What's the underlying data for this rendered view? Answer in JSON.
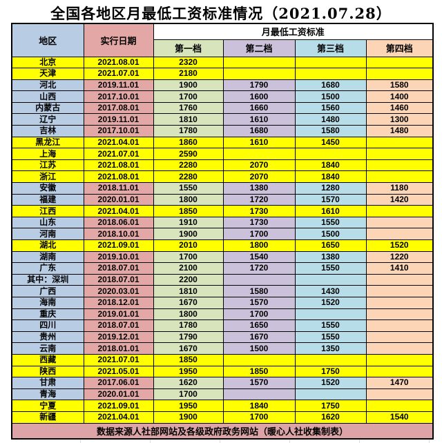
{
  "chart_data": {
    "type": "table",
    "title": "全国各地区月最低工资标准情况（2021.07.28）",
    "header": {
      "region": "地区",
      "date": "实行日期",
      "group": "月最低工资标准",
      "tiers": [
        "第一档",
        "第二档",
        "第三档",
        "第四档"
      ]
    },
    "rows": [
      {
        "region": "北京",
        "date": "2021.08.01",
        "tiers": [
          "2320",
          "",
          "",
          ""
        ],
        "highlight": true
      },
      {
        "region": "天津",
        "date": "2021.07.01",
        "tiers": [
          "2180",
          "",
          "",
          ""
        ],
        "highlight": true
      },
      {
        "region": "河北",
        "date": "2019.11.01",
        "tiers": [
          "1900",
          "1790",
          "1680",
          "1580"
        ],
        "highlight": false
      },
      {
        "region": "山西",
        "date": "2017.10.01",
        "tiers": [
          "1700",
          "1600",
          "1500",
          "1400"
        ],
        "highlight": false
      },
      {
        "region": "内蒙古",
        "date": "2017.08.01",
        "tiers": [
          "1760",
          "1660",
          "1560",
          "1460"
        ],
        "highlight": false
      },
      {
        "region": "辽宁",
        "date": "2019.11.01",
        "tiers": [
          "1810",
          "1610",
          "1480",
          "1300"
        ],
        "highlight": false
      },
      {
        "region": "吉林",
        "date": "2017.10.01",
        "tiers": [
          "1780",
          "1680",
          "1580",
          "1480"
        ],
        "highlight": false
      },
      {
        "region": "黑龙江",
        "date": "2021.04.01",
        "tiers": [
          "1860",
          "1610",
          "1450",
          ""
        ],
        "highlight": true
      },
      {
        "region": "上海",
        "date": "2021.07.01",
        "tiers": [
          "2590",
          "",
          "",
          ""
        ],
        "highlight": true
      },
      {
        "region": "江苏",
        "date": "2021.08.01",
        "tiers": [
          "2280",
          "2070",
          "1840",
          ""
        ],
        "highlight": true
      },
      {
        "region": "浙江",
        "date": "2021.08.01",
        "tiers": [
          "2280",
          "2070",
          "1840",
          ""
        ],
        "highlight": true
      },
      {
        "region": "安徽",
        "date": "2018.11.01",
        "tiers": [
          "1550",
          "1380",
          "1280",
          "1180"
        ],
        "highlight": false
      },
      {
        "region": "福建",
        "date": "2020.01.01",
        "tiers": [
          "1800",
          "1720",
          "1570",
          "1420"
        ],
        "highlight": false
      },
      {
        "region": "江西",
        "date": "2021.04.01",
        "tiers": [
          "1850",
          "1730",
          "1610",
          ""
        ],
        "highlight": true
      },
      {
        "region": "山东",
        "date": "2018.06.01",
        "tiers": [
          "1910",
          "1730",
          "1550",
          ""
        ],
        "highlight": false
      },
      {
        "region": "河南",
        "date": "2018.10.01",
        "tiers": [
          "1900",
          "1700",
          "1500",
          ""
        ],
        "highlight": false
      },
      {
        "region": "湖北",
        "date": "2021.09.01",
        "tiers": [
          "2010",
          "1800",
          "1650",
          "1520"
        ],
        "highlight": true
      },
      {
        "region": "湖南",
        "date": "2019.10.01",
        "tiers": [
          "1700",
          "1540",
          "1380",
          "1220"
        ],
        "highlight": false
      },
      {
        "region": "广东",
        "date": "2018.07.01",
        "tiers": [
          "2100",
          "1720",
          "1550",
          "1410"
        ],
        "highlight": false
      },
      {
        "region": "其中：深圳",
        "date": "2018.07.01",
        "tiers": [
          "2200",
          "",
          "",
          ""
        ],
        "highlight": false
      },
      {
        "region": "广西",
        "date": "2020.03.01",
        "tiers": [
          "1810",
          "1580",
          "1430",
          ""
        ],
        "highlight": false
      },
      {
        "region": "海南",
        "date": "2018.12.01",
        "tiers": [
          "1670",
          "1570",
          "1520",
          ""
        ],
        "highlight": false
      },
      {
        "region": "重庆",
        "date": "2019.01.01",
        "tiers": [
          "1800",
          "1700",
          "",
          ""
        ],
        "highlight": false
      },
      {
        "region": "四川",
        "date": "2018.07.01",
        "tiers": [
          "1780",
          "1650",
          "1550",
          ""
        ],
        "highlight": false
      },
      {
        "region": "贵州",
        "date": "2019.12.01",
        "tiers": [
          "1790",
          "1670",
          "1550",
          ""
        ],
        "highlight": false
      },
      {
        "region": "云南",
        "date": "2018.01.01",
        "tiers": [
          "1670",
          "1500",
          "1350",
          ""
        ],
        "highlight": false
      },
      {
        "region": "西藏",
        "date": "2021.07.01",
        "tiers": [
          "1850",
          "",
          "",
          ""
        ],
        "highlight": true
      },
      {
        "region": "陕西",
        "date": "2021.05.01",
        "tiers": [
          "1950",
          "1850",
          "1750",
          ""
        ],
        "highlight": true
      },
      {
        "region": "甘肃",
        "date": "2017.06.01",
        "tiers": [
          "1620",
          "1570",
          "1520",
          "1470"
        ],
        "highlight": false
      },
      {
        "region": "青海",
        "date": "2020.01.01",
        "tiers": [
          "1700",
          "",
          "",
          ""
        ],
        "highlight": false
      },
      {
        "region": "宁夏",
        "date": "2021.09.01",
        "tiers": [
          "1950",
          "1840",
          "1750",
          ""
        ],
        "highlight": true
      },
      {
        "region": "新疆",
        "date": "2021.04.01",
        "tiers": [
          "1900",
          "1700",
          "1620",
          "1540"
        ],
        "highlight": true
      }
    ],
    "footnote": "数据来源人社部网站及各级政府政务网站（暖心人社收集制表）"
  },
  "colors": {
    "highlight_row": "#FFFF00",
    "region_column": "#B8CCE4",
    "date_column": "#E3A8A5",
    "tier1_column": "#D8E4BC",
    "tier2_column": "#CCC1DA",
    "tier3_column": "#B7DEE8",
    "tier4_column": "#FBD5B5",
    "footer_bar": "#DCA4A6",
    "border": "#000000"
  }
}
